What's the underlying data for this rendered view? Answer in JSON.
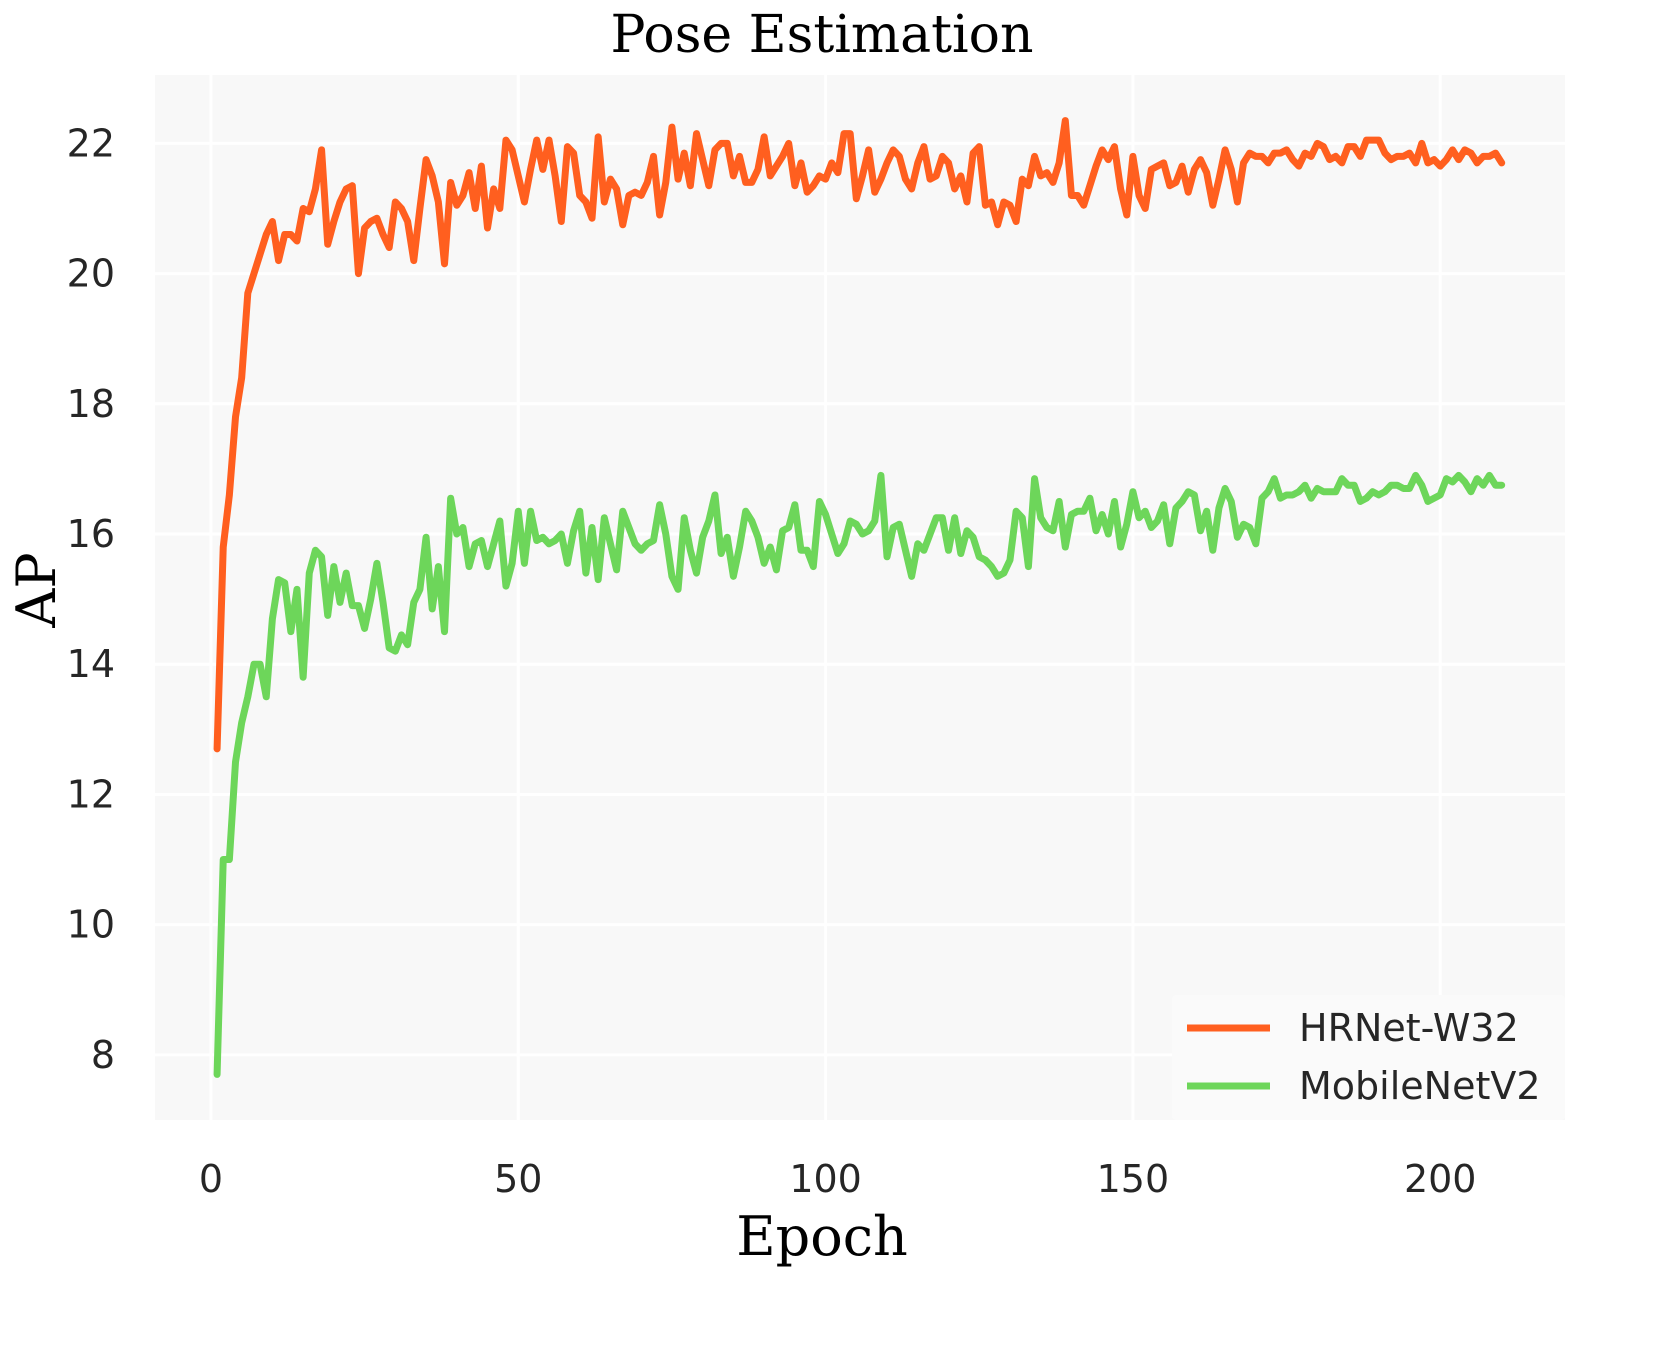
{
  "chart_data": {
    "type": "line",
    "title": "Pose Estimation",
    "x_label": "Epoch",
    "y_label": "AP",
    "x": [
      1,
      2,
      3,
      4,
      5,
      6,
      7,
      8,
      9,
      10,
      11,
      12,
      13,
      14,
      15,
      16,
      17,
      18,
      19,
      20,
      21,
      22,
      23,
      24,
      25,
      26,
      27,
      28,
      29,
      30,
      31,
      32,
      33,
      34,
      35,
      36,
      37,
      38,
      39,
      40,
      41,
      42,
      43,
      44,
      45,
      46,
      47,
      48,
      49,
      50,
      51,
      52,
      53,
      54,
      55,
      56,
      57,
      58,
      59,
      60,
      61,
      62,
      63,
      64,
      65,
      66,
      67,
      68,
      69,
      70,
      71,
      72,
      73,
      74,
      75,
      76,
      77,
      78,
      79,
      80,
      81,
      82,
      83,
      84,
      85,
      86,
      87,
      88,
      89,
      90,
      91,
      92,
      93,
      94,
      95,
      96,
      97,
      98,
      99,
      100,
      101,
      102,
      103,
      104,
      105,
      106,
      107,
      108,
      109,
      110,
      111,
      112,
      113,
      114,
      115,
      116,
      117,
      118,
      119,
      120,
      121,
      122,
      123,
      124,
      125,
      126,
      127,
      128,
      129,
      130,
      131,
      132,
      133,
      134,
      135,
      136,
      137,
      138,
      139,
      140,
      141,
      142,
      143,
      144,
      145,
      146,
      147,
      148,
      149,
      150,
      151,
      152,
      153,
      154,
      155,
      156,
      157,
      158,
      159,
      160,
      161,
      162,
      163,
      164,
      165,
      166,
      167,
      168,
      169,
      170,
      171,
      172,
      173,
      174,
      175,
      176,
      177,
      178,
      179,
      180,
      181,
      182,
      183,
      184,
      185,
      186,
      187,
      188,
      189,
      190,
      191,
      192,
      193,
      194,
      195,
      196,
      197,
      198,
      199,
      200,
      201,
      202,
      203,
      204,
      205,
      206,
      207,
      208,
      209,
      210
    ],
    "series": [
      {
        "name": "HRNet-W32",
        "color": "#ff5f1f",
        "values": [
          12.7,
          15.8,
          16.6,
          17.8,
          18.4,
          19.7,
          20.0,
          20.3,
          20.6,
          20.8,
          20.2,
          20.6,
          20.6,
          20.5,
          21.0,
          20.95,
          21.3,
          21.9,
          20.45,
          20.8,
          21.1,
          21.3,
          21.35,
          20.0,
          20.7,
          20.8,
          20.85,
          20.6,
          20.4,
          21.1,
          21.0,
          20.8,
          20.2,
          21.0,
          21.75,
          21.5,
          21.1,
          20.15,
          21.4,
          21.05,
          21.2,
          21.55,
          21.0,
          21.65,
          20.7,
          21.3,
          21.0,
          22.05,
          21.9,
          21.5,
          21.1,
          21.6,
          22.05,
          21.6,
          22.05,
          21.5,
          20.8,
          21.95,
          21.85,
          21.2,
          21.1,
          20.85,
          22.1,
          21.1,
          21.45,
          21.3,
          20.75,
          21.2,
          21.25,
          21.2,
          21.4,
          21.8,
          20.9,
          21.4,
          22.25,
          21.45,
          21.85,
          21.35,
          22.15,
          21.75,
          21.35,
          21.9,
          22.0,
          22.0,
          21.5,
          21.8,
          21.4,
          21.4,
          21.6,
          22.1,
          21.5,
          21.65,
          21.8,
          22.0,
          21.35,
          21.7,
          21.25,
          21.35,
          21.5,
          21.45,
          21.7,
          21.55,
          22.15,
          22.15,
          21.15,
          21.5,
          21.9,
          21.25,
          21.45,
          21.7,
          21.9,
          21.8,
          21.45,
          21.3,
          21.7,
          21.95,
          21.45,
          21.5,
          21.8,
          21.7,
          21.3,
          21.5,
          21.1,
          21.85,
          21.95,
          21.05,
          21.1,
          20.75,
          21.1,
          21.05,
          20.8,
          21.45,
          21.35,
          21.8,
          21.5,
          21.55,
          21.4,
          21.7,
          22.35,
          21.2,
          21.2,
          21.05,
          21.35,
          21.65,
          21.9,
          21.75,
          21.95,
          21.3,
          20.9,
          21.8,
          21.2,
          21.0,
          21.6,
          21.65,
          21.7,
          21.35,
          21.4,
          21.65,
          21.25,
          21.6,
          21.75,
          21.55,
          21.05,
          21.45,
          21.9,
          21.6,
          21.1,
          21.7,
          21.85,
          21.8,
          21.8,
          21.7,
          21.85,
          21.85,
          21.9,
          21.75,
          21.65,
          21.85,
          21.8,
          22.0,
          21.95,
          21.75,
          21.8,
          21.7,
          21.95,
          21.95,
          21.8,
          22.05,
          22.05,
          22.05,
          21.85,
          21.75,
          21.8,
          21.8,
          21.85,
          21.7,
          22.0,
          21.7,
          21.75,
          21.65,
          21.75,
          21.9,
          21.75,
          21.9,
          21.85,
          21.7,
          21.8,
          21.8,
          21.85,
          21.7
        ]
      },
      {
        "name": "MobileNetV2",
        "color": "#6dd65a",
        "values": [
          7.7,
          11.0,
          11.0,
          12.5,
          13.1,
          13.5,
          14.0,
          14.0,
          13.5,
          14.7,
          15.3,
          15.25,
          14.5,
          15.15,
          13.8,
          15.4,
          15.75,
          15.65,
          14.75,
          15.5,
          14.95,
          15.4,
          14.9,
          14.9,
          14.55,
          15.0,
          15.55,
          14.95,
          14.25,
          14.2,
          14.45,
          14.3,
          14.95,
          15.15,
          15.95,
          14.85,
          15.5,
          14.5,
          16.55,
          16.0,
          16.1,
          15.5,
          15.85,
          15.9,
          15.5,
          15.85,
          16.2,
          15.2,
          15.55,
          16.35,
          15.55,
          16.35,
          15.9,
          15.95,
          15.85,
          15.9,
          16.0,
          15.55,
          16.05,
          16.35,
          15.4,
          16.1,
          15.3,
          16.25,
          15.85,
          15.45,
          16.35,
          16.1,
          15.85,
          15.75,
          15.85,
          15.9,
          16.45,
          16.0,
          15.35,
          15.15,
          16.25,
          15.75,
          15.4,
          15.95,
          16.2,
          16.6,
          15.7,
          15.95,
          15.35,
          15.8,
          16.35,
          16.2,
          15.95,
          15.55,
          15.8,
          15.45,
          16.05,
          16.1,
          16.45,
          15.75,
          15.75,
          15.5,
          16.5,
          16.3,
          16.0,
          15.7,
          15.85,
          16.2,
          16.15,
          16.0,
          16.05,
          16.2,
          16.9,
          15.65,
          16.1,
          16.15,
          15.75,
          15.35,
          15.85,
          15.75,
          16.0,
          16.25,
          16.25,
          15.75,
          16.25,
          15.7,
          16.05,
          15.95,
          15.65,
          15.6,
          15.5,
          15.35,
          15.4,
          15.6,
          16.35,
          16.25,
          15.5,
          16.85,
          16.25,
          16.1,
          16.05,
          16.5,
          15.8,
          16.3,
          16.35,
          16.35,
          16.55,
          16.05,
          16.3,
          16.0,
          16.5,
          15.8,
          16.15,
          16.65,
          16.25,
          16.35,
          16.1,
          16.2,
          16.45,
          15.85,
          16.4,
          16.5,
          16.65,
          16.6,
          16.05,
          16.35,
          15.75,
          16.4,
          16.7,
          16.5,
          15.95,
          16.15,
          16.1,
          15.85,
          16.55,
          16.65,
          16.85,
          16.55,
          16.6,
          16.6,
          16.65,
          16.75,
          16.55,
          16.7,
          16.65,
          16.65,
          16.65,
          16.85,
          16.75,
          16.75,
          16.5,
          16.55,
          16.65,
          16.6,
          16.65,
          16.75,
          16.75,
          16.7,
          16.7,
          16.9,
          16.75,
          16.5,
          16.55,
          16.6,
          16.85,
          16.8,
          16.9,
          16.8,
          16.65,
          16.85,
          16.75,
          16.9,
          16.75,
          16.75
        ]
      }
    ],
    "xlim": [
      -9.1,
      220.3
    ],
    "ylim": [
      7.0,
      23.05
    ],
    "xticks": [
      0,
      50,
      100,
      150,
      200
    ],
    "yticks": [
      8,
      10,
      12,
      14,
      16,
      18,
      20,
      22
    ],
    "grid": true,
    "legend": "lower right"
  }
}
